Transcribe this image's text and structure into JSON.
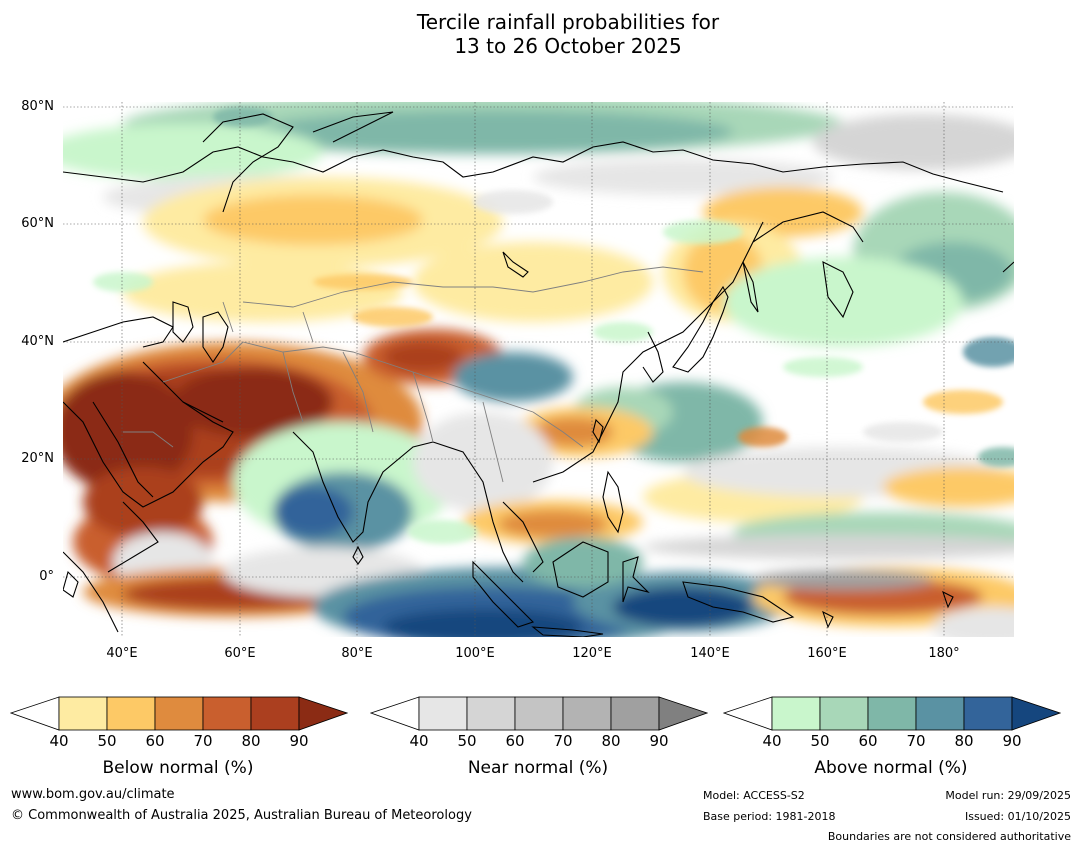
{
  "title_line1": "Tercile rainfall probabilities for",
  "title_line2": "13 to 26 October 2025",
  "map": {
    "lat_ticks": [
      "80°N",
      "60°N",
      "40°N",
      "20°N",
      "0°"
    ],
    "lon_ticks": [
      "40°E",
      "60°E",
      "80°E",
      "100°E",
      "120°E",
      "140°E",
      "160°E",
      "180°"
    ],
    "lat_range": [
      -10,
      80
    ],
    "lon_range": [
      30,
      192
    ]
  },
  "colorbars": [
    {
      "name": "below-normal",
      "title": "Below normal (%)",
      "ticks": [
        "40",
        "50",
        "60",
        "70",
        "80",
        "90"
      ],
      "colors": [
        "#ffffff",
        "#feeba2",
        "#fdc966",
        "#df8b3e",
        "#c95f2e",
        "#ab3f1f",
        "#8b2b14"
      ]
    },
    {
      "name": "near-normal",
      "title": "Near normal (%)",
      "ticks": [
        "40",
        "50",
        "60",
        "70",
        "80",
        "90"
      ],
      "colors": [
        "#ffffff",
        "#e6e6e6",
        "#d5d5d5",
        "#c4c4c4",
        "#b3b3b3",
        "#a0a0a0",
        "#808080"
      ]
    },
    {
      "name": "above-normal",
      "title": "Above normal (%)",
      "ticks": [
        "40",
        "50",
        "60",
        "70",
        "80",
        "90"
      ],
      "colors": [
        "#ffffff",
        "#c9f6cc",
        "#a8d7b8",
        "#7fb7a8",
        "#5a92a3",
        "#33649a",
        "#15467e"
      ]
    }
  ],
  "footer": {
    "website": "www.bom.gov.au/climate",
    "copyright": "© Commonwealth of Australia 2025, Australian Bureau of Meteorology",
    "model": "Model: ACCESS-S2",
    "base_period": "Base period: 1981-2018",
    "model_run": "Model run: 29/09/2025",
    "issued": "Issued: 01/10/2025",
    "boundaries": "Boundaries are not considered authoritative"
  }
}
